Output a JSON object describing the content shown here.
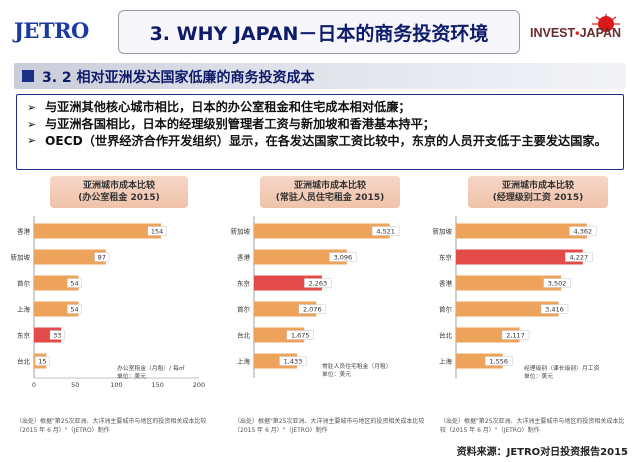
{
  "header": {
    "logo_left": "JETRO",
    "title": "3.  WHY JAPAN－日本的商务投资环境",
    "logo_right_invest": "INVEST",
    "logo_right_japan": "JAPAN"
  },
  "section": {
    "label": "3. 2   相对亚洲发达国家低廉的商务投资成本"
  },
  "bullets": [
    {
      "arrow": "➢",
      "text": "与亚洲其他核心城市相比，日本的办公室租金和住宅成本相对低廉；"
    },
    {
      "arrow": "➢",
      "text": "与亚洲各国相比，日本的经理级别管理者工资与新加坡和香港基本持平；"
    },
    {
      "arrow": "➢",
      "text": "OECD（世界经济合作开发组织）显示，在各发达国家工资比较中，东京的人员开支低于主要发达国家。"
    }
  ],
  "colors": {
    "bar_normal": "#eea35c",
    "bar_highlight": "#e34b4b",
    "title_navy": "#0e1a6a"
  },
  "chart_data": [
    {
      "type": "bar",
      "orientation": "horizontal",
      "title_line1": "亚洲城市成本比较",
      "title_line2": "(办公室租金 2015)",
      "categories": [
        "香港",
        "新加坡",
        "首尔",
        "上海",
        "东京",
        "台北"
      ],
      "values": [
        154,
        87,
        54,
        54,
        33,
        15
      ],
      "value_labels": [
        "154",
        "87",
        "54",
        "54",
        "33",
        "15"
      ],
      "highlight_index": 4,
      "xlim": [
        0,
        200
      ],
      "xticks": [
        "0",
        "50",
        "100",
        "150",
        "200"
      ],
      "unit_note_1": "办公室租金（月租）/ 每㎡",
      "unit_note_2": "单位：美元",
      "footnote_1": "（出处）根据\"第25次亚洲、大洋洲主要城市与地区的投资相关成本比较",
      "footnote_2": "（2015 年 6 月）\"（JETRO）制作"
    },
    {
      "type": "bar",
      "orientation": "horizontal",
      "title_line1": "亚洲城市成本比较",
      "title_line2": "(常驻人员住宅租金 2015)",
      "categories": [
        "新加坡",
        "香港",
        "东京",
        "首尔",
        "台北",
        "上海"
      ],
      "values": [
        4521,
        3096,
        2263,
        2076,
        1675,
        1433
      ],
      "value_labels": [
        "4,521",
        "3,096",
        "2,263",
        "2,076",
        "1,675",
        "1,433"
      ],
      "highlight_index": 2,
      "xlim": [
        0,
        5000
      ],
      "unit_note_1": "常驻人员住宅租金（月租）",
      "unit_note_2": "单位：美元",
      "footnote_1": "（出处）根据\"第25次亚洲、大洋洲主要城市与地区的投资相关成本比较",
      "footnote_2": "（2015 年 6 月）\"（JETRO）制作"
    },
    {
      "type": "bar",
      "orientation": "horizontal",
      "title_line1": "亚洲城市成本比较",
      "title_line2": "(经理级别工资 2015)",
      "categories": [
        "新加坡",
        "东京",
        "香港",
        "首尔",
        "台北",
        "上海"
      ],
      "values": [
        4362,
        4227,
        3502,
        3416,
        2117,
        1556
      ],
      "value_labels": [
        "4,362",
        "4,227",
        "3,502",
        "3,416",
        "2,117",
        "1,556"
      ],
      "highlight_index": 1,
      "xlim": [
        0,
        5000
      ],
      "unit_note_1": "经理级别（课长级别）月工资",
      "unit_note_2": "单位：美元",
      "footnote_1": "（出处）根据\"第25次亚洲、大洋洲主要城市与地区的投资相关成本比",
      "footnote_2": "较（2015 年 6 月）\"（JETRO）制作"
    }
  ],
  "source": "资料来源：JETRO对日投资报告2015"
}
